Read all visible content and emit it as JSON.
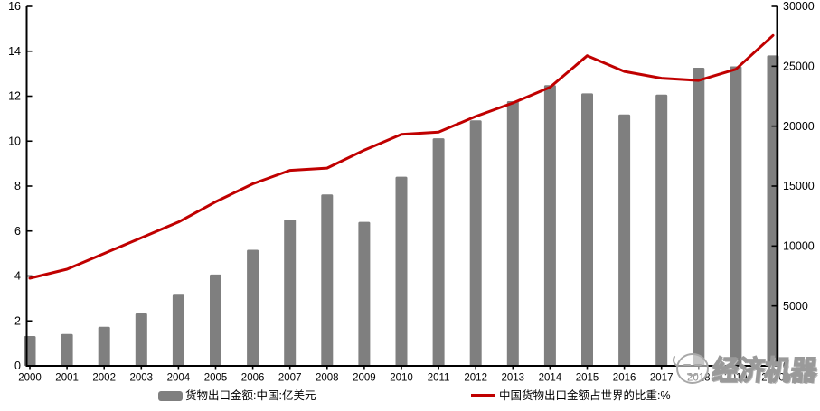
{
  "chart_data": {
    "type": "combo",
    "title": "",
    "grid": false,
    "legend_position": "bottom",
    "categories": [
      "2000",
      "2001",
      "2002",
      "2003",
      "2004",
      "2005",
      "2006",
      "2007",
      "2008",
      "2009",
      "2010",
      "2011",
      "2012",
      "2013",
      "2014",
      "2015",
      "2016",
      "2017",
      "2018",
      "2019",
      "2020"
    ],
    "series": [
      {
        "name": "货物出口金额:中国:亿美元",
        "chart_type": "bar",
        "y_axis": "right",
        "color": "#7f7f7f",
        "values": [
          2492,
          2661,
          3256,
          4382,
          5933,
          7620,
          9690,
          12205,
          14307,
          12016,
          15778,
          18984,
          20487,
          22090,
          23423,
          22735,
          20976,
          22633,
          24874,
          24990,
          25900
        ]
      },
      {
        "name": "中国货物出口金额占世界的比重:%",
        "chart_type": "line",
        "y_axis": "left",
        "color": "#c00000",
        "values": [
          3.9,
          4.3,
          5.0,
          5.7,
          6.4,
          7.3,
          8.1,
          8.7,
          8.8,
          9.6,
          10.3,
          10.4,
          11.1,
          11.7,
          12.4,
          13.8,
          13.1,
          12.8,
          12.7,
          13.2,
          14.7
        ]
      }
    ],
    "left_axis": {
      "min": 0,
      "max": 16,
      "step": 2,
      "tick_labels": [
        "0",
        "2",
        "4",
        "6",
        "8",
        "10",
        "12",
        "14",
        "16"
      ]
    },
    "right_axis": {
      "min": 0,
      "max": 30000,
      "step": 5000,
      "tick_labels": [
        "0",
        "5000",
        "10000",
        "15000",
        "20000",
        "25000",
        "30000"
      ]
    },
    "axis_color": "#000000"
  },
  "legend": {
    "items": [
      {
        "label": "货物出口金额:中国:亿美元",
        "swatch": "bar",
        "color": "#7f7f7f"
      },
      {
        "label": "中国货物出口金额占世界的比重:%",
        "swatch": "line",
        "color": "#c00000"
      }
    ]
  },
  "watermark": {
    "text": "经济机器",
    "mascot": "cartoon-face"
  }
}
